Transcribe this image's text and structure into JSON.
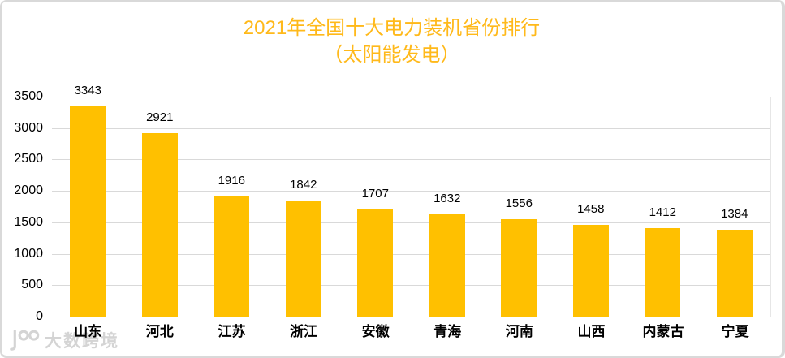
{
  "title": {
    "line1": "2021年全国十大电力装机省份排行",
    "line2": "（太阳能发电）"
  },
  "chart_data": {
    "type": "bar",
    "title": "2021年全国十大电力装机省份排行（太阳能发电）",
    "categories": [
      "山东",
      "河北",
      "江苏",
      "浙江",
      "安徽",
      "青海",
      "河南",
      "山西",
      "内蒙古",
      "宁夏"
    ],
    "values": [
      3343,
      2921,
      1916,
      1842,
      1707,
      1632,
      1556,
      1458,
      1412,
      1384
    ],
    "xlabel": "",
    "ylabel": "",
    "ylim": [
      0,
      3500
    ],
    "yticks": [
      0,
      500,
      1000,
      1500,
      2000,
      2500,
      3000,
      3500
    ],
    "grid": true,
    "data_labels": true,
    "legend": "none"
  },
  "colors": {
    "bar": "#FFC000",
    "title": "#FFB91A",
    "gridline": "#D9D9D9",
    "axis_line": "#BFBFBF",
    "text": "#000000",
    "watermark": "#D4D4D4",
    "frame_border": "#D9D9D9"
  },
  "watermark": {
    "icon": "dashukuajing-logo-icon",
    "text": "大数跨境"
  }
}
